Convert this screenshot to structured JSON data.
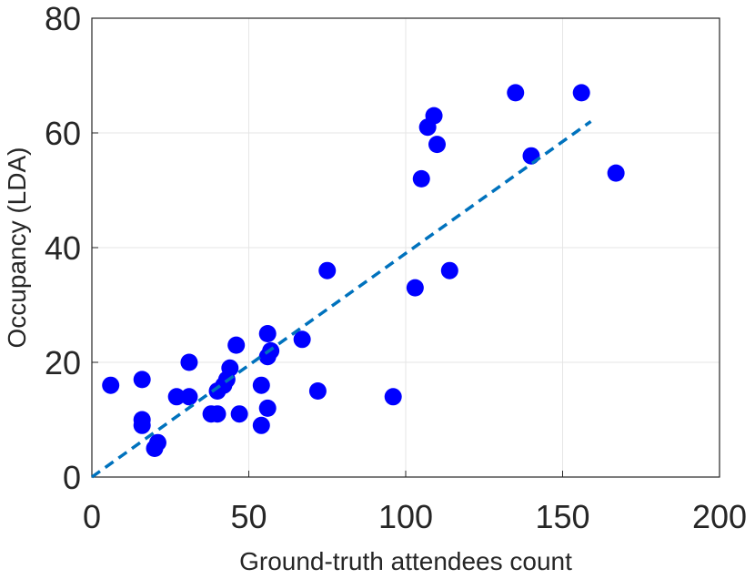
{
  "chart_data": {
    "type": "scatter",
    "xlabel": "Ground-truth attendees count",
    "ylabel": "Occupancy (LDA)",
    "series": [
      {
        "color": "#0000ff",
        "x": [
          6,
          16,
          16,
          16,
          20,
          21,
          27,
          31,
          31,
          38,
          40,
          40,
          42,
          43,
          44,
          46,
          47,
          54,
          54,
          56,
          56,
          57,
          56,
          67,
          72,
          75,
          96,
          103,
          105,
          107,
          109,
          110,
          114,
          135,
          140,
          156,
          167
        ],
        "values": [
          16,
          17,
          10,
          9,
          5,
          6,
          14,
          20,
          14,
          11,
          11,
          15,
          16,
          17,
          19,
          23,
          11,
          16,
          9,
          25,
          21,
          22,
          12,
          24,
          15,
          36,
          14,
          33,
          52,
          61,
          63,
          58,
          36,
          67,
          56,
          67,
          53
        ]
      }
    ],
    "fit_line": {
      "color": "#0072bd",
      "x": [
        0,
        159
      ],
      "values": [
        0,
        62
      ]
    },
    "xlim": [
      0,
      200
    ],
    "xticks": [
      0,
      50,
      100,
      150,
      200
    ],
    "ylim": [
      0,
      80
    ],
    "yticks": [
      0,
      20,
      40,
      60,
      80
    ],
    "grid": true
  }
}
